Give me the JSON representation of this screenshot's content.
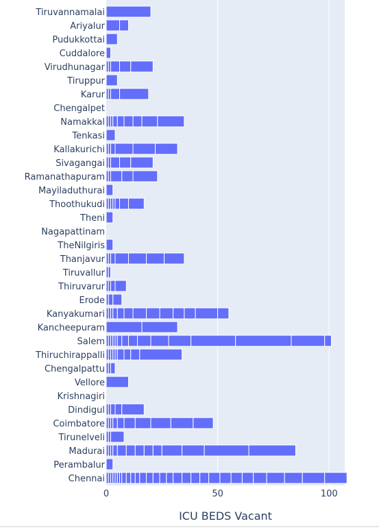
{
  "chart_data": {
    "type": "bar",
    "orientation": "horizontal",
    "stacked": true,
    "xlabel": "ICU BEDS Vacant",
    "ylabel": "",
    "title": "",
    "xlim": [
      0,
      107
    ],
    "xticks": [
      0,
      50,
      100
    ],
    "grid": true,
    "colors": {
      "bar": "#636efa",
      "plot_bg": "#e5ecf6",
      "text": "#2a3f5f"
    },
    "categories": [
      "Tiruvannamalai",
      "Ariyalur",
      "Pudukkottai",
      "Cuddalore",
      "Virudhunagar",
      "Tiruppur",
      "Karur",
      "Chengalpet",
      "Namakkal",
      "Tenkasi",
      "Kallakurichi",
      "Sivagangai",
      "Ramanathapuram",
      "Mayiladuthurai",
      "Thoothukudi",
      "Theni",
      "Nagapattinam",
      "TheNilgiris",
      "Thanjavur",
      "Tiruvallur",
      "Thiruvarur",
      "Erode",
      "Kanyakumari",
      "Kancheepuram",
      "Salem",
      "Thiruchirappalli",
      "Chengalpattu",
      "Vellore",
      "Krishnagiri",
      "Dindigul",
      "Coimbatore",
      "Tirunelveli",
      "Madurai",
      "Perambalur",
      "Chennai"
    ],
    "segments": [
      [
        20
      ],
      [
        6,
        4
      ],
      [
        5
      ],
      [
        2
      ],
      [
        1,
        1,
        4,
        5,
        10
      ],
      [
        5
      ],
      [
        1,
        1,
        4,
        13
      ],
      [],
      [
        1,
        1,
        1,
        2,
        3,
        4,
        4,
        7,
        12
      ],
      [
        4
      ],
      [
        1,
        1,
        2,
        8,
        10,
        10
      ],
      [
        1,
        1,
        4,
        5,
        10
      ],
      [
        1,
        1,
        5,
        5,
        11
      ],
      [
        3
      ],
      [
        1,
        1,
        1,
        1,
        2,
        4,
        7
      ],
      [
        3
      ],
      [],
      [
        3
      ],
      [
        1,
        1,
        2,
        6,
        8,
        8,
        9
      ],
      [
        1,
        1
      ],
      [
        1,
        1,
        2,
        5
      ],
      [
        1,
        2,
        4
      ],
      [
        1,
        1,
        1,
        2,
        3,
        4,
        6,
        6,
        6,
        5,
        5,
        10,
        5
      ],
      [
        16,
        16
      ],
      [
        1,
        1,
        1,
        1,
        1,
        2,
        3,
        4,
        6,
        8,
        10,
        20,
        25,
        15,
        3
      ],
      [
        1,
        1,
        1,
        1,
        1,
        3,
        3,
        4,
        19
      ],
      [
        1,
        1,
        2
      ],
      [
        10
      ],
      [],
      [
        1,
        1,
        2,
        3,
        10
      ],
      [
        1,
        1,
        1,
        2,
        3,
        5,
        7,
        9,
        10,
        9
      ],
      [
        1,
        1,
        6
      ],
      [
        1,
        1,
        1,
        2,
        4,
        4,
        4,
        4,
        4,
        9,
        10,
        20,
        21
      ],
      [
        3
      ],
      [
        1,
        1,
        1,
        1,
        1,
        1,
        1,
        2,
        2,
        2,
        2,
        3,
        3,
        3,
        3,
        3,
        4,
        4,
        4,
        4,
        5,
        5,
        5,
        5,
        6,
        8,
        8,
        10,
        10
      ]
    ]
  }
}
